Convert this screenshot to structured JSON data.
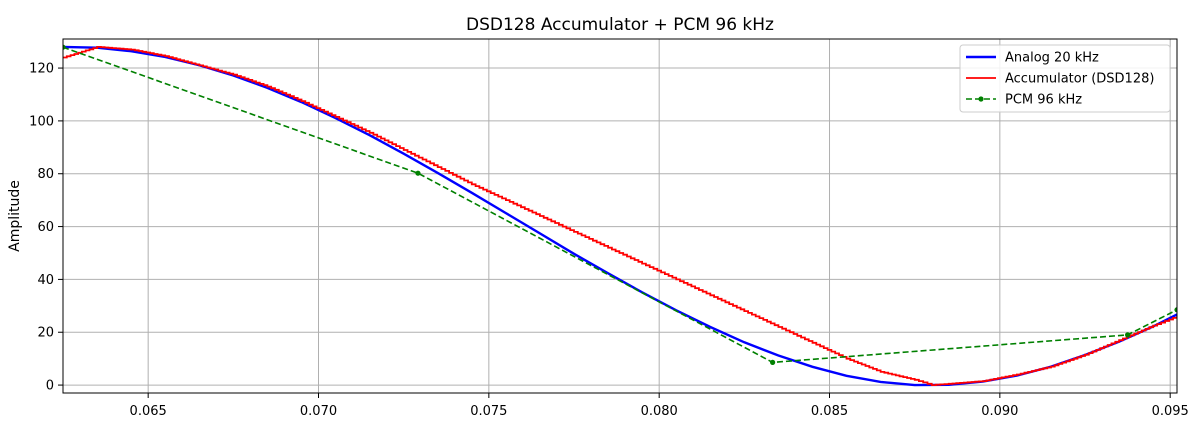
{
  "chart_data": {
    "type": "line",
    "title": "DSD128 Accumulator + PCM 96 kHz",
    "xlabel": "",
    "ylabel": "Amplitude",
    "xlim": [
      0.0625,
      0.0952
    ],
    "ylim": [
      -3,
      131
    ],
    "grid": true,
    "legend_position": "top-right",
    "x_ticks": [
      0.065,
      0.07,
      0.075,
      0.08,
      0.085,
      0.09,
      0.095
    ],
    "x_tick_labels": [
      "0.065",
      "0.070",
      "0.075",
      "0.080",
      "0.085",
      "0.090",
      "0.095"
    ],
    "y_ticks": [
      0,
      20,
      40,
      60,
      80,
      100,
      120
    ],
    "y_tick_labels": [
      "0",
      "20",
      "40",
      "60",
      "80",
      "100",
      "120"
    ],
    "series": [
      {
        "name": "Analog 20 kHz",
        "color": "#0000ff",
        "style": "solid",
        "x": [
          0.0625,
          0.0635,
          0.0645,
          0.0655,
          0.0665,
          0.0675,
          0.0685,
          0.0695,
          0.0705,
          0.0715,
          0.0725,
          0.0735,
          0.0745,
          0.0755,
          0.0765,
          0.0775,
          0.0785,
          0.0795,
          0.0805,
          0.0815,
          0.0825,
          0.0835,
          0.0845,
          0.0855,
          0.0865,
          0.0875,
          0.0885,
          0.0895,
          0.0905,
          0.0915,
          0.0925,
          0.0935,
          0.0945,
          0.0952
        ],
        "y": [
          128.0,
          127.7,
          126.4,
          124.2,
          121.1,
          117.2,
          112.5,
          107.1,
          101.1,
          94.6,
          87.6,
          80.3,
          72.8,
          65.1,
          57.4,
          49.7,
          42.3,
          35.1,
          28.3,
          22.0,
          16.2,
          11.2,
          6.9,
          3.5,
          1.2,
          0.0,
          0.1,
          1.3,
          3.6,
          7.0,
          11.4,
          16.4,
          22.2,
          26.7
        ]
      },
      {
        "name": "Accumulator (DSD128)",
        "color": "#ff0000",
        "style": "step",
        "x": [
          0.0625,
          0.0635,
          0.0645,
          0.0655,
          0.0665,
          0.0675,
          0.0685,
          0.0695,
          0.0705,
          0.0715,
          0.0725,
          0.0735,
          0.0745,
          0.0755,
          0.0765,
          0.0775,
          0.0785,
          0.0795,
          0.0805,
          0.0815,
          0.0825,
          0.0835,
          0.0845,
          0.0855,
          0.0865,
          0.0875,
          0.088,
          0.0885,
          0.0895,
          0.0905,
          0.0915,
          0.0925,
          0.0935,
          0.0945,
          0.0952
        ],
        "y": [
          124.0,
          128.0,
          127.0,
          124.5,
          121.0,
          117.5,
          113.0,
          107.5,
          101.5,
          95.5,
          89.0,
          82.5,
          76.0,
          70.0,
          64.0,
          58.0,
          52.0,
          46.0,
          40.0,
          34.0,
          28.0,
          22.0,
          16.0,
          10.0,
          5.0,
          2.0,
          0.0,
          0.5,
          1.5,
          4.0,
          7.0,
          11.5,
          17.0,
          22.5,
          26.0
        ]
      },
      {
        "name": "PCM 96 kHz",
        "color": "#008000",
        "style": "dashed-markers",
        "x": [
          0.0625,
          0.07292,
          0.08333,
          0.09375,
          0.0952
        ],
        "y": [
          127.9,
          80.2,
          8.6,
          19.0,
          28.5
        ]
      }
    ]
  }
}
